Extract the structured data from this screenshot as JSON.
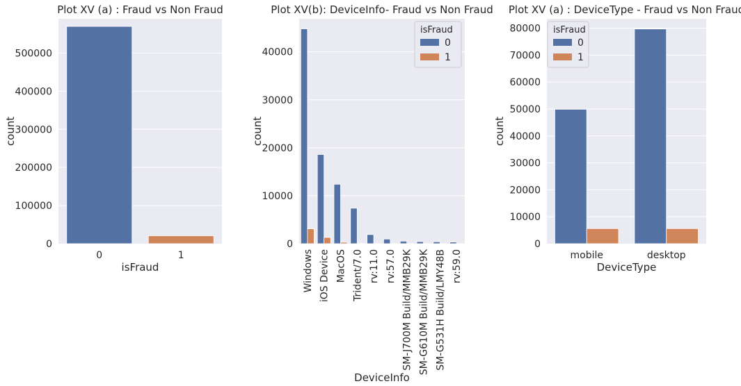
{
  "colors": {
    "class0": "#5471a4",
    "class1": "#cf8559",
    "panel_bg": "#eaeaf2",
    "grid": "#ffffff"
  },
  "chart_data": [
    {
      "type": "bar",
      "title": "Plot XV (a) : Fraud vs Non Fraud",
      "xlabel": "isFraud",
      "ylabel": "count",
      "categories": [
        "0",
        "1"
      ],
      "values": [
        569877,
        20663
      ],
      "ylim": [
        0,
        590000
      ],
      "yticks": [
        0,
        100000,
        200000,
        300000,
        400000,
        500000
      ],
      "grid": true
    },
    {
      "type": "bar",
      "title": "Plot XV(b): DeviceInfo- Fraud vs Non Fraud",
      "xlabel": "DeviceInfo",
      "ylabel": "count",
      "categories": [
        "Windows",
        "iOS Device",
        "MacOS",
        "Trident/7.0",
        "rv:11.0",
        "rv:57.0",
        "SM-J700M Build/MMB29K",
        "SM-G610M Build/MMB29K",
        "SM-G531H Build/LMY48B",
        "rv:59.0"
      ],
      "series": [
        {
          "name": "0",
          "values": [
            44800,
            18600,
            12400,
            7400,
            1900,
            960,
            530,
            430,
            400,
            340
          ]
        },
        {
          "name": "1",
          "values": [
            3100,
            1300,
            300,
            100,
            30,
            20,
            20,
            20,
            10,
            10
          ]
        }
      ],
      "legend_title": "isFraud",
      "legend": "top-right",
      "ylim": [
        0,
        46900
      ],
      "yticks": [
        0,
        10000,
        20000,
        30000,
        40000
      ],
      "grid": true
    },
    {
      "type": "bar",
      "title": "Plot XV (a) : DeviceType - Fraud vs Non Fraud",
      "xlabel": "DeviceType",
      "ylabel": "count",
      "categories": [
        "mobile",
        "desktop"
      ],
      "series": [
        {
          "name": "0",
          "values": [
            49900,
            79700
          ]
        },
        {
          "name": "1",
          "values": [
            5600,
            5600
          ]
        }
      ],
      "legend_title": "isFraud",
      "legend": "top-left",
      "ylim": [
        0,
        83500
      ],
      "yticks": [
        0,
        10000,
        20000,
        30000,
        40000,
        50000,
        60000,
        70000,
        80000
      ],
      "grid": true
    }
  ]
}
